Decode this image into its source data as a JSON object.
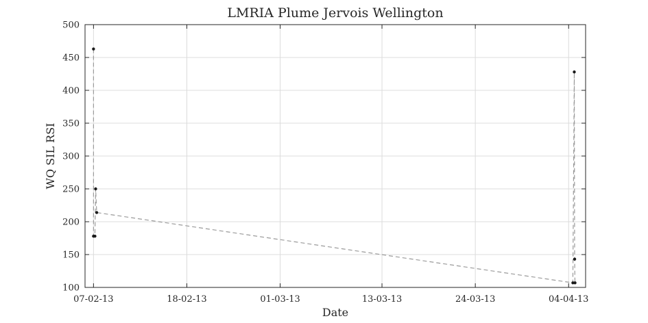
{
  "chart_data": {
    "type": "line",
    "title": "LMRIA Plume Jervois Wellington",
    "xlabel": "Date",
    "ylabel": "WQ SIL RSI",
    "x_ticks": [
      "07-02-13",
      "18-02-13",
      "01-03-13",
      "13-03-13",
      "24-03-13",
      "04-04-13"
    ],
    "y_ticks": [
      100,
      150,
      200,
      250,
      300,
      350,
      400,
      450,
      500
    ],
    "xlim": [
      "2013-02-06",
      "2013-04-06"
    ],
    "ylim": [
      100,
      500
    ],
    "grid": true,
    "colors": {
      "marker": "#1a1a1a",
      "line": "#9a9a9a",
      "grid": "#dcdcdc",
      "axis": "#262626"
    },
    "points": [
      {
        "x": "2013-02-07 00:00",
        "y": 463
      },
      {
        "x": "2013-02-07 00:00",
        "y": 178
      },
      {
        "x": "2013-02-07 04:00",
        "y": 178
      },
      {
        "x": "2013-02-07 06:00",
        "y": 250
      },
      {
        "x": "2013-02-07 09:00",
        "y": 214
      },
      {
        "x": "2013-04-04 12:00",
        "y": 107
      },
      {
        "x": "2013-04-04 16:00",
        "y": 428
      },
      {
        "x": "2013-04-04 17:00",
        "y": 143
      },
      {
        "x": "2013-04-04 18:00",
        "y": 107
      }
    ]
  }
}
